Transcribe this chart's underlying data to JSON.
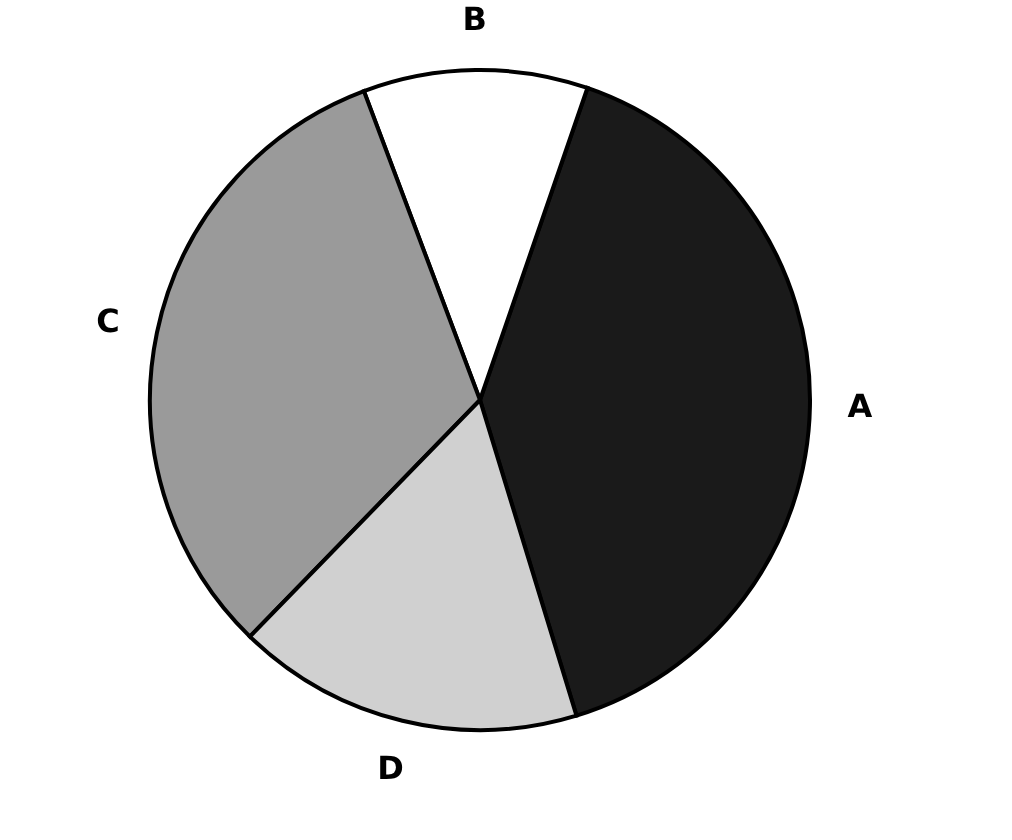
{
  "chart_data": {
    "type": "pie",
    "categories": [
      "A",
      "B",
      "C",
      "D"
    ],
    "values": [
      40,
      11,
      32,
      17
    ],
    "colors": [
      "#1a1a1a",
      "#ffffff",
      "#9a9a9a",
      "#d0d0d0"
    ],
    "legend": false
  }
}
